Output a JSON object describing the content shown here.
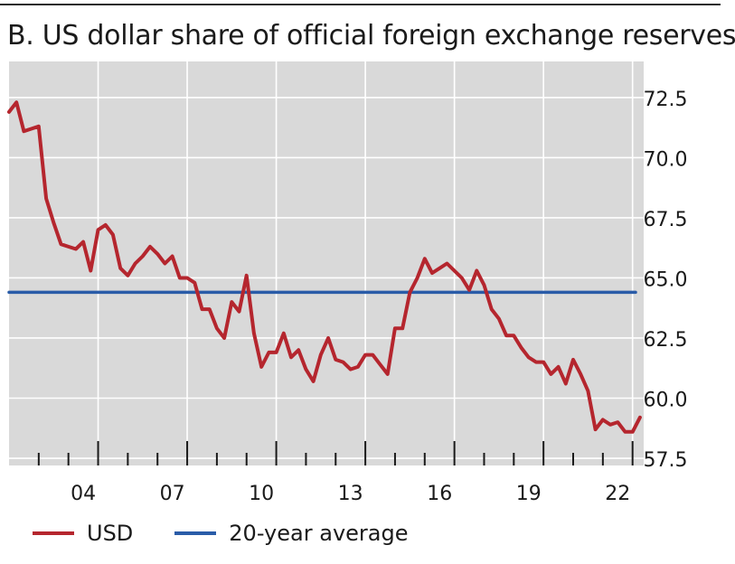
{
  "chart_data": {
    "type": "line",
    "title": "B. US dollar share of official foreign exchange reserves",
    "xlabel": "",
    "ylabel": "",
    "x_ticks": [
      "04",
      "07",
      "10",
      "13",
      "16",
      "19",
      "22"
    ],
    "y_ticks": [
      "72.5",
      "70.0",
      "67.5",
      "65.0",
      "62.5",
      "60.0",
      "57.5"
    ],
    "xlim": [
      2001.0,
      2022.375
    ],
    "ylim": [
      57.2,
      74.0
    ],
    "grid": true,
    "legend_position": "bottom",
    "series": [
      {
        "name": "USD",
        "color": "#b5262e",
        "x": [
          2001.0,
          2001.25,
          2001.5,
          2001.75,
          2002.0,
          2002.25,
          2002.5,
          2002.75,
          2003.0,
          2003.25,
          2003.5,
          2003.75,
          2004.0,
          2004.25,
          2004.5,
          2004.75,
          2005.0,
          2005.25,
          2005.5,
          2005.75,
          2006.0,
          2006.25,
          2006.5,
          2006.75,
          2007.0,
          2007.25,
          2007.5,
          2007.75,
          2008.0,
          2008.25,
          2008.5,
          2008.75,
          2009.0,
          2009.25,
          2009.5,
          2009.75,
          2010.0,
          2010.25,
          2010.5,
          2010.75,
          2011.0,
          2011.25,
          2011.5,
          2011.75,
          2012.0,
          2012.25,
          2012.5,
          2012.75,
          2013.0,
          2013.25,
          2013.5,
          2013.75,
          2014.0,
          2014.25,
          2014.5,
          2014.75,
          2015.0,
          2015.25,
          2015.5,
          2015.75,
          2016.0,
          2016.25,
          2016.5,
          2016.75,
          2017.0,
          2017.25,
          2017.5,
          2017.75,
          2018.0,
          2018.25,
          2018.5,
          2018.75,
          2019.0,
          2019.25,
          2019.5,
          2019.75,
          2020.0,
          2020.25,
          2020.5,
          2020.75,
          2021.0,
          2021.25,
          2021.5,
          2021.75,
          2022.0,
          2022.25
        ],
        "values": [
          71.9,
          72.3,
          71.1,
          71.2,
          71.3,
          68.3,
          67.3,
          66.4,
          66.3,
          66.2,
          66.5,
          65.3,
          67.0,
          67.2,
          66.8,
          65.4,
          65.1,
          65.6,
          65.9,
          66.3,
          66.0,
          65.6,
          65.9,
          65.0,
          65.0,
          64.8,
          63.7,
          63.7,
          62.9,
          62.5,
          64.0,
          63.6,
          65.1,
          62.7,
          61.3,
          61.9,
          61.9,
          62.7,
          61.7,
          62.0,
          61.2,
          60.7,
          61.8,
          62.5,
          61.6,
          61.5,
          61.2,
          61.3,
          61.8,
          61.8,
          61.4,
          61.0,
          62.9,
          62.9,
          64.4,
          65.0,
          65.8,
          65.2,
          65.4,
          65.6,
          65.3,
          65.0,
          64.5,
          65.3,
          64.7,
          63.7,
          63.3,
          62.6,
          62.6,
          62.1,
          61.7,
          61.5,
          61.5,
          61.0,
          61.3,
          60.6,
          61.6,
          61.0,
          60.3,
          58.7,
          59.1,
          58.9,
          59.0,
          58.6,
          58.6,
          59.2
        ]
      },
      {
        "name": "20-year average",
        "color": "#2a5ca8",
        "x": [
          2001.0,
          2022.1
        ],
        "values": [
          64.4,
          64.4
        ]
      }
    ]
  }
}
